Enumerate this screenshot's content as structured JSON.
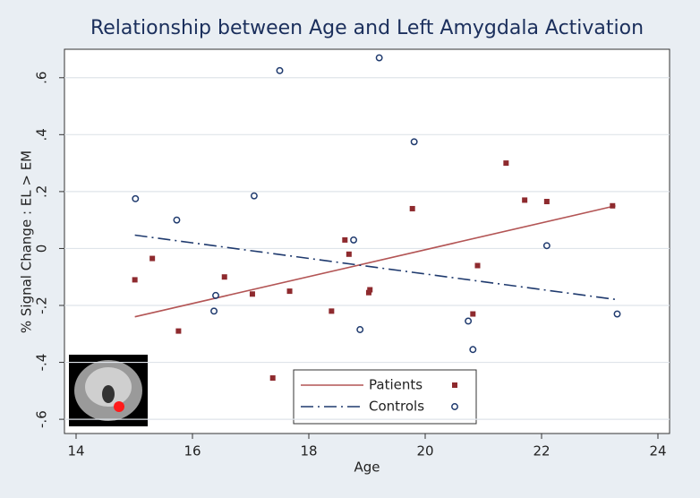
{
  "chart_data": {
    "type": "scatter",
    "title": "Relationship between Age and Left Amygdala Activation",
    "xlabel": "Age",
    "ylabel": "% Signal Change : EL > EM",
    "xlim": [
      13.8,
      24.2
    ],
    "ylim": [
      -0.65,
      0.7
    ],
    "xticks": [
      14,
      16,
      18,
      20,
      22,
      24
    ],
    "yticks": [
      {
        "value": -0.6,
        "label": "-.6"
      },
      {
        "value": -0.4,
        "label": "-.4"
      },
      {
        "value": -0.2,
        "label": "-.2"
      },
      0,
      {
        "value": 0.2,
        "label": ".2"
      },
      {
        "value": 0.4,
        "label": ".4"
      },
      {
        "value": 0.6,
        "label": ".6"
      }
    ],
    "grid": true,
    "legend": "bottom",
    "series": [
      {
        "name": "Patients",
        "color": "#8e2a2e",
        "line_color": "#b35555",
        "marker": "square",
        "x": [
          15.01,
          15.31,
          15.76,
          16.55,
          17.03,
          17.38,
          17.67,
          18.39,
          18.62,
          18.69,
          19.03,
          19.05,
          19.78,
          20.82,
          20.9,
          21.39,
          21.71,
          22.09,
          23.22
        ],
        "values": [
          -0.11,
          -0.035,
          -0.29,
          -0.1,
          -0.16,
          -0.455,
          -0.15,
          -0.22,
          0.03,
          -0.02,
          -0.155,
          -0.145,
          0.14,
          -0.23,
          -0.06,
          0.3,
          0.17,
          0.165,
          0.15
        ],
        "fit_x": [
          15.01,
          23.27
        ],
        "fit_values": [
          -0.24,
          0.15
        ]
      },
      {
        "name": "Controls",
        "color": "#1f3a6e",
        "line_color": "#1f3a6e",
        "marker": "circle",
        "x": [
          15.02,
          15.73,
          16.4,
          16.37,
          17.06,
          17.5,
          18.77,
          18.88,
          19.21,
          19.81,
          20.74,
          20.82,
          22.09,
          23.3
        ],
        "values": [
          0.175,
          0.1,
          -0.165,
          -0.22,
          0.185,
          0.625,
          0.03,
          -0.285,
          0.67,
          0.375,
          -0.255,
          -0.355,
          0.01,
          -0.23
        ],
        "fit_x": [
          15.01,
          23.31
        ],
        "fit_values": [
          0.047,
          -0.18
        ]
      }
    ]
  }
}
